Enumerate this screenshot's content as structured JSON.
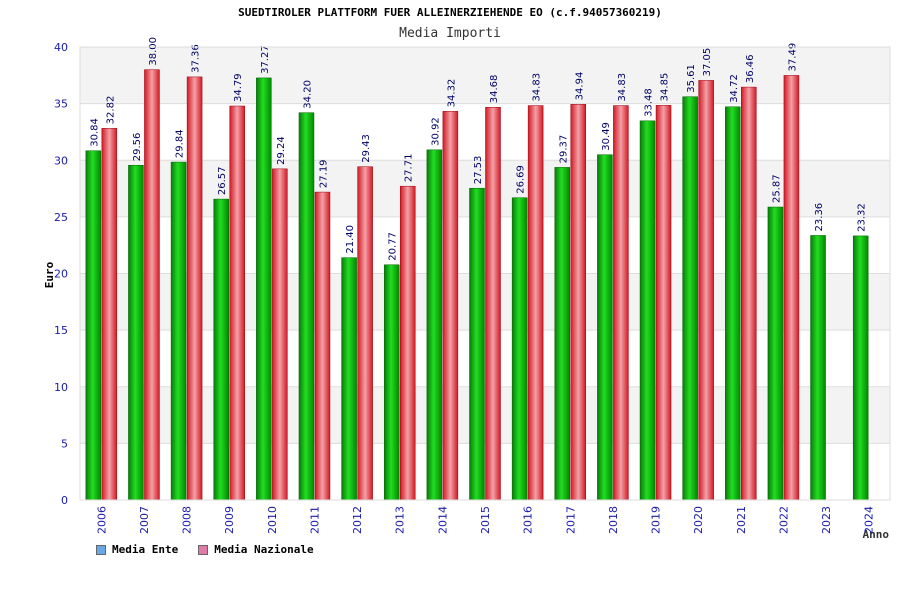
{
  "header": {
    "title": "SUEDTIROLER PLATTFORM FUER ALLEINERZIEHENDE EO (c.f.94057360219)",
    "subtitle": "Media Importi"
  },
  "legend": {
    "items": [
      {
        "label": "Media Ente",
        "color": "#6aa7e6"
      },
      {
        "label": "Media Nazionale",
        "color": "#e07aa6"
      }
    ]
  },
  "chart_data": {
    "type": "bar",
    "ylabel": "Euro",
    "xlabel": "Anno",
    "ylim": [
      0,
      40
    ],
    "yticks": [
      0,
      5,
      10,
      15,
      20,
      25,
      30,
      35,
      40
    ],
    "grid": true,
    "legend_position": "bottom-left",
    "categories": [
      "2006",
      "2007",
      "2008",
      "2009",
      "2010",
      "2011",
      "2012",
      "2013",
      "2014",
      "2015",
      "2016",
      "2017",
      "2018",
      "2019",
      "2020",
      "2021",
      "2022",
      "2023",
      "2024"
    ],
    "series": [
      {
        "name": "Media Ente",
        "color": "#00b000",
        "values": [
          30.84,
          29.56,
          29.84,
          26.57,
          37.27,
          34.2,
          21.4,
          20.77,
          30.92,
          27.53,
          26.69,
          29.37,
          30.49,
          33.48,
          35.61,
          34.72,
          25.87,
          23.36,
          23.32
        ]
      },
      {
        "name": "Media Nazionale",
        "color": "#e8202a",
        "values": [
          32.82,
          38.0,
          37.36,
          34.79,
          29.24,
          27.19,
          29.43,
          27.71,
          34.32,
          34.68,
          34.83,
          34.94,
          34.83,
          34.85,
          37.05,
          36.46,
          37.49,
          null,
          null
        ]
      }
    ],
    "data_labels": [
      [
        "30.84",
        "29.56",
        "29.84",
        "26.57",
        "37.27",
        "34.20",
        "21.40",
        "20.77",
        "30.92",
        "27.53",
        "26.69",
        "29.37",
        "30.49",
        "33.48",
        "35.61",
        "34.72",
        "25.87",
        "23.36",
        "23.32"
      ],
      [
        "32.82",
        "38.00",
        "37.36",
        "34.79",
        "29.24",
        "27.19",
        "29.43",
        "27.71",
        "34.32",
        "34.68",
        "34.83",
        "34.94",
        "34.83",
        "34.85",
        "37.05",
        "36.46",
        "37.49",
        "",
        ""
      ]
    ]
  }
}
